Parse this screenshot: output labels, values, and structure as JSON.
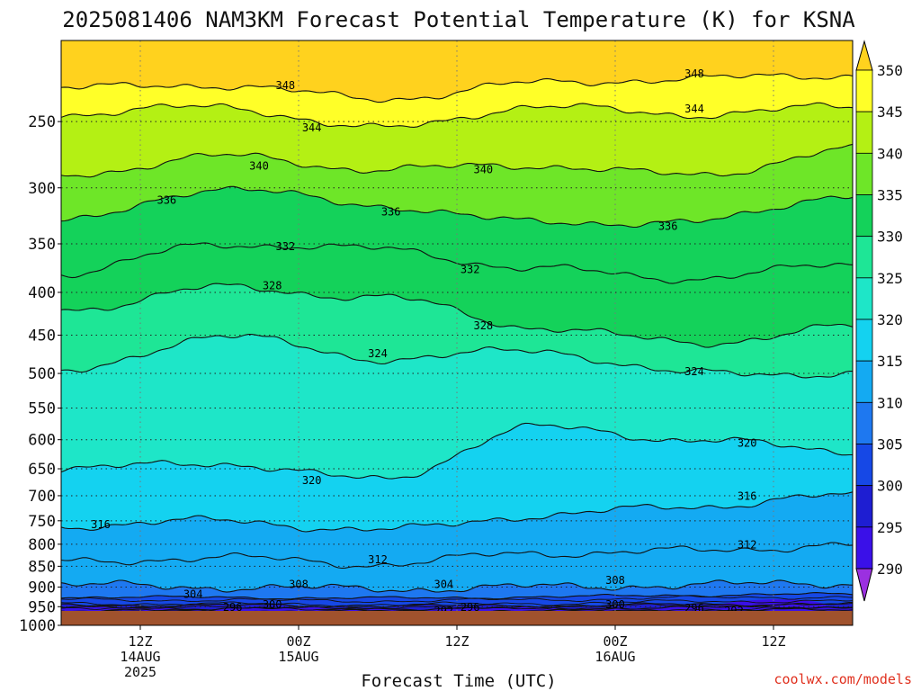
{
  "chart_data": {
    "type": "heatmap",
    "title": "2025081406 NAM3KM Forecast Potential Temperature (K) for KSNA",
    "xlabel": "Forecast Time (UTC)",
    "ylabel": "",
    "credit": "coolwx.com/models",
    "y_scale": "log-pressure",
    "y_unit": "hPa",
    "ylim": [
      1000,
      200
    ],
    "x_start": "2025-08-14T06Z",
    "x_end": "2025-08-16T18Z",
    "pressure_ticks": [
      250,
      300,
      350,
      400,
      450,
      500,
      550,
      600,
      650,
      700,
      750,
      800,
      850,
      900,
      950,
      1000
    ],
    "time_ticks": [
      {
        "t": "2025-08-14T12Z",
        "label1": "12Z",
        "label2": "14AUG",
        "label3": "2025"
      },
      {
        "t": "2025-08-15T00Z",
        "label1": "00Z",
        "label2": "15AUG",
        "label3": ""
      },
      {
        "t": "2025-08-15T12Z",
        "label1": "12Z",
        "label2": "",
        "label3": ""
      },
      {
        "t": "2025-08-16T00Z",
        "label1": "00Z",
        "label2": "16AUG",
        "label3": ""
      },
      {
        "t": "2025-08-16T12Z",
        "label1": "12Z",
        "label2": "",
        "label3": ""
      }
    ],
    "colorbar": {
      "levels": [
        290,
        295,
        300,
        305,
        310,
        315,
        320,
        325,
        330,
        335,
        340,
        345,
        350
      ],
      "colors": [
        "#9b30e0",
        "#3a10e8",
        "#1e1ed2",
        "#1648e6",
        "#1e78f0",
        "#14aaf2",
        "#14d2f0",
        "#1ee6c8",
        "#1ee696",
        "#14d25a",
        "#6ee628",
        "#b4f014",
        "#ffff28",
        "#ffd21e"
      ]
    },
    "contours": [
      {
        "value": 292,
        "x": [
          "2025-08-14T06Z",
          "2025-08-14T18Z",
          "2025-08-15T06Z",
          "2025-08-15T18Z",
          "2025-08-16T06Z",
          "2025-08-16T18Z"
        ],
        "p": [
          960,
          961,
          962,
          961,
          960,
          958
        ]
      },
      {
        "value": 296,
        "x": [
          "2025-08-14T06Z",
          "2025-08-14T18Z",
          "2025-08-15T06Z",
          "2025-08-15T18Z",
          "2025-08-16T06Z",
          "2025-08-16T18Z"
        ],
        "p": [
          953,
          954,
          955,
          954,
          952,
          951
        ]
      },
      {
        "value": 300,
        "x": [
          "2025-08-14T06Z",
          "2025-08-14T18Z",
          "2025-08-15T06Z",
          "2025-08-15T18Z",
          "2025-08-16T06Z",
          "2025-08-16T18Z"
        ],
        "p": [
          945,
          946,
          948,
          947,
          944,
          943
        ]
      },
      {
        "value": 304,
        "x": [
          "2025-08-14T06Z",
          "2025-08-14T18Z",
          "2025-08-15T06Z",
          "2025-08-15T18Z",
          "2025-08-16T06Z",
          "2025-08-16T18Z"
        ],
        "p": [
          925,
          926,
          928,
          925,
          920,
          918
        ]
      },
      {
        "value": 308,
        "x": [
          "2025-08-14T06Z",
          "2025-08-14T18Z",
          "2025-08-15T06Z",
          "2025-08-15T18Z",
          "2025-08-16T06Z",
          "2025-08-16T18Z"
        ],
        "p": [
          895,
          900,
          905,
          900,
          895,
          890
        ]
      },
      {
        "value": 312,
        "x": [
          "2025-08-14T06Z",
          "2025-08-14T18Z",
          "2025-08-15T06Z",
          "2025-08-15T18Z",
          "2025-08-16T06Z",
          "2025-08-16T18Z"
        ],
        "p": [
          840,
          830,
          845,
          820,
          815,
          800
        ]
      },
      {
        "value": 316,
        "x": [
          "2025-08-14T06Z",
          "2025-08-14T18Z",
          "2025-08-15T06Z",
          "2025-08-15T18Z",
          "2025-08-16T06Z",
          "2025-08-16T18Z"
        ],
        "p": [
          760,
          750,
          770,
          740,
          720,
          700
        ]
      },
      {
        "value": 320,
        "x": [
          "2025-08-14T06Z",
          "2025-08-14T18Z",
          "2025-08-15T06Z",
          "2025-08-15T18Z",
          "2025-08-16T06Z",
          "2025-08-16T18Z"
        ],
        "p": [
          650,
          640,
          670,
          580,
          600,
          620
        ]
      },
      {
        "value": 324,
        "x": [
          "2025-08-14T06Z",
          "2025-08-14T18Z",
          "2025-08-15T06Z",
          "2025-08-15T18Z",
          "2025-08-16T06Z",
          "2025-08-16T18Z"
        ],
        "p": [
          500,
          450,
          480,
          470,
          500,
          500
        ]
      },
      {
        "value": 328,
        "x": [
          "2025-08-14T06Z",
          "2025-08-14T18Z",
          "2025-08-15T06Z",
          "2025-08-15T18Z",
          "2025-08-16T06Z",
          "2025-08-16T18Z"
        ],
        "p": [
          420,
          395,
          405,
          440,
          460,
          440
        ]
      },
      {
        "value": 332,
        "x": [
          "2025-08-14T06Z",
          "2025-08-14T18Z",
          "2025-08-15T06Z",
          "2025-08-15T18Z",
          "2025-08-16T06Z",
          "2025-08-16T18Z"
        ],
        "p": [
          380,
          350,
          355,
          375,
          385,
          370
        ]
      },
      {
        "value": 336,
        "x": [
          "2025-08-14T06Z",
          "2025-08-14T18Z",
          "2025-08-15T06Z",
          "2025-08-15T18Z",
          "2025-08-16T06Z",
          "2025-08-16T18Z"
        ],
        "p": [
          330,
          300,
          315,
          330,
          330,
          305
        ]
      },
      {
        "value": 340,
        "x": [
          "2025-08-14T06Z",
          "2025-08-14T18Z",
          "2025-08-15T06Z",
          "2025-08-15T18Z",
          "2025-08-16T06Z",
          "2025-08-16T18Z"
        ],
        "p": [
          290,
          275,
          285,
          282,
          290,
          270
        ]
      },
      {
        "value": 344,
        "x": [
          "2025-08-14T06Z",
          "2025-08-14T18Z",
          "2025-08-15T06Z",
          "2025-08-15T18Z",
          "2025-08-16T06Z",
          "2025-08-16T18Z"
        ],
        "p": [
          245,
          240,
          255,
          240,
          245,
          240
        ]
      },
      {
        "value": 348,
        "x": [
          "2025-08-14T06Z",
          "2025-08-14T18Z",
          "2025-08-15T06Z",
          "2025-08-15T18Z",
          "2025-08-16T06Z",
          "2025-08-16T18Z"
        ],
        "p": [
          228,
          226,
          235,
          225,
          222,
          220
        ]
      }
    ],
    "contour_labels": [
      {
        "value": 348,
        "t": "2025-08-14T23Z",
        "p": 226
      },
      {
        "value": 348,
        "t": "2025-08-16T06Z",
        "p": 219
      },
      {
        "value": 344,
        "t": "2025-08-15T01Z",
        "p": 254
      },
      {
        "value": 344,
        "t": "2025-08-16T06Z",
        "p": 241
      },
      {
        "value": 340,
        "t": "2025-08-14T21Z",
        "p": 282
      },
      {
        "value": 340,
        "t": "2025-08-15T14Z",
        "p": 285
      },
      {
        "value": 336,
        "t": "2025-08-14T14Z",
        "p": 310
      },
      {
        "value": 336,
        "t": "2025-08-15T07Z",
        "p": 320
      },
      {
        "value": 336,
        "t": "2025-08-16T04Z",
        "p": 333
      },
      {
        "value": 332,
        "t": "2025-08-14T23Z",
        "p": 352
      },
      {
        "value": 332,
        "t": "2025-08-15T13Z",
        "p": 375
      },
      {
        "value": 328,
        "t": "2025-08-14T22Z",
        "p": 392
      },
      {
        "value": 328,
        "t": "2025-08-15T14Z",
        "p": 438
      },
      {
        "value": 324,
        "t": "2025-08-15T06Z",
        "p": 473
      },
      {
        "value": 324,
        "t": "2025-08-16T06Z",
        "p": 497
      },
      {
        "value": 320,
        "t": "2025-08-15T01Z",
        "p": 670
      },
      {
        "value": 320,
        "t": "2025-08-16T10Z",
        "p": 605
      },
      {
        "value": 316,
        "t": "2025-08-14T09Z",
        "p": 757
      },
      {
        "value": 316,
        "t": "2025-08-16T10Z",
        "p": 700
      },
      {
        "value": 312,
        "t": "2025-08-15T06Z",
        "p": 834
      },
      {
        "value": 312,
        "t": "2025-08-16T10Z",
        "p": 800
      },
      {
        "value": 308,
        "t": "2025-08-15T00Z",
        "p": 892
      },
      {
        "value": 308,
        "t": "2025-08-16T00Z",
        "p": 883
      },
      {
        "value": 304,
        "t": "2025-08-14T16Z",
        "p": 917
      },
      {
        "value": 304,
        "t": "2025-08-15T11Z",
        "p": 892
      },
      {
        "value": 300,
        "t": "2025-08-14T22Z",
        "p": 943
      },
      {
        "value": 300,
        "t": "2025-08-16T00Z",
        "p": 943
      },
      {
        "value": 296,
        "t": "2025-08-14T19Z",
        "p": 951
      },
      {
        "value": 296,
        "t": "2025-08-15T13Z",
        "p": 951
      },
      {
        "value": 296,
        "t": "2025-08-16T06Z",
        "p": 953
      },
      {
        "value": 292,
        "t": "2025-08-15T11Z",
        "p": 960
      },
      {
        "value": 292,
        "t": "2025-08-16T09Z",
        "p": 960
      }
    ]
  }
}
